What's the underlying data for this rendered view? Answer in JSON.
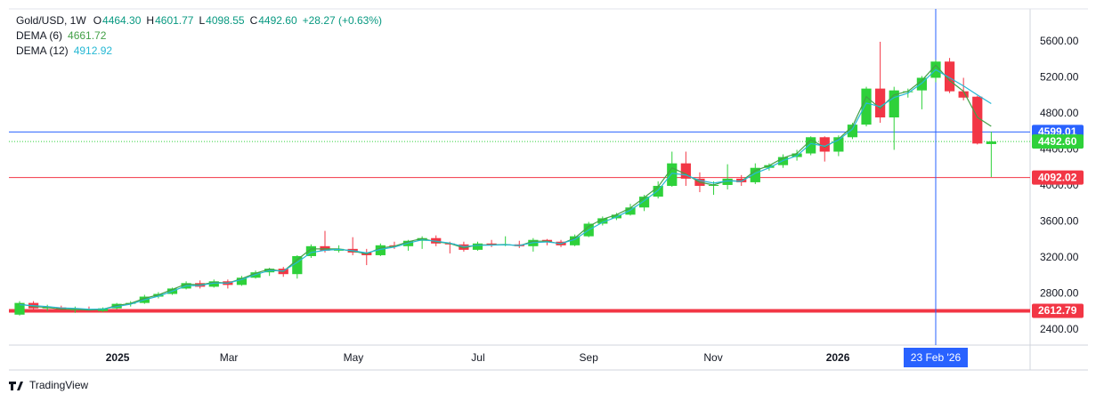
{
  "chart_data": {
    "type": "candlestick",
    "legend": {
      "symbol": "Gold/USD, 1W",
      "ohlc": [
        {
          "label": "O",
          "value": "4464.30"
        },
        {
          "label": "H",
          "value": "4601.77"
        },
        {
          "label": "L",
          "value": "4098.55"
        },
        {
          "label": "C",
          "value": "4492.60"
        }
      ],
      "change": "+28.27 (+0.63%)"
    },
    "categories": [
      null,
      null,
      null,
      null,
      null,
      null,
      null,
      null,
      null,
      null,
      null,
      null,
      null,
      null,
      null,
      null,
      null,
      null,
      null,
      null,
      null,
      null,
      null,
      null,
      null,
      null,
      null,
      null,
      null,
      null,
      null,
      null,
      null,
      null,
      null,
      null,
      null,
      null,
      null,
      null,
      null,
      null,
      null,
      null,
      null,
      null,
      null,
      null,
      null,
      null,
      null,
      null,
      null,
      null,
      null,
      null,
      null,
      null,
      null,
      null,
      null,
      null,
      null,
      null,
      null,
      null,
      null,
      null,
      null,
      null,
      null
    ],
    "open": [
      2570,
      2700,
      2640,
      2650,
      2620,
      2630,
      2610,
      2640,
      2690,
      2700,
      2770,
      2800,
      2860,
      2920,
      2880,
      2940,
      2900,
      2980,
      3040,
      3080,
      3020,
      3220,
      3330,
      3280,
      3300,
      3260,
      3230,
      3340,
      3330,
      3390,
      3420,
      3360,
      3350,
      3290,
      3360,
      3340,
      3350,
      3330,
      3400,
      3380,
      3340,
      3440,
      3580,
      3640,
      3680,
      3760,
      3880,
      4000,
      4250,
      4080,
      4000,
      4010,
      4080,
      4040,
      4200,
      4230,
      4320,
      4360,
      4540,
      4380,
      4540,
      4680,
      5080,
      4760,
      5040,
      5060,
      5200,
      5380,
      5050,
      4990,
      4464.3
    ],
    "high": [
      2720,
      2720,
      2680,
      2670,
      2660,
      2660,
      2650,
      2700,
      2720,
      2790,
      2820,
      2870,
      2940,
      2950,
      2960,
      2960,
      3000,
      3060,
      3090,
      3100,
      3230,
      3350,
      3500,
      3340,
      3430,
      3300,
      3360,
      3380,
      3400,
      3440,
      3450,
      3380,
      3380,
      3380,
      3400,
      3440,
      3390,
      3420,
      3410,
      3400,
      3460,
      3600,
      3660,
      3700,
      3800,
      3900,
      4050,
      4380,
      4380,
      4150,
      4050,
      4240,
      4120,
      4250,
      4250,
      4350,
      4400,
      4550,
      4550,
      4560,
      4700,
      5100,
      5600,
      5100,
      5080,
      5220,
      5400,
      5420,
      5200,
      5000,
      4601.77
    ],
    "low": [
      2560,
      2630,
      2610,
      2600,
      2590,
      2600,
      2600,
      2630,
      2660,
      2690,
      2750,
      2790,
      2850,
      2860,
      2870,
      2860,
      2890,
      2970,
      3000,
      2990,
      2970,
      3200,
      3260,
      3260,
      3230,
      3120,
      3220,
      3300,
      3280,
      3300,
      3330,
      3250,
      3270,
      3280,
      3320,
      3330,
      3310,
      3270,
      3340,
      3320,
      3330,
      3430,
      3560,
      3620,
      3670,
      3720,
      3860,
      3990,
      4000,
      3930,
      3900,
      3960,
      4000,
      4020,
      4170,
      4200,
      4280,
      4340,
      4270,
      4330,
      4520,
      4660,
      4700,
      4400,
      4980,
      4850,
      5150,
      5030,
      4950,
      4460,
      4098.55
    ],
    "close": [
      2700,
      2640,
      2650,
      2620,
      2630,
      2610,
      2640,
      2690,
      2700,
      2770,
      2800,
      2860,
      2920,
      2880,
      2940,
      2900,
      2980,
      3040,
      3080,
      3020,
      3220,
      3330,
      3280,
      3300,
      3260,
      3230,
      3340,
      3330,
      3390,
      3420,
      3360,
      3350,
      3290,
      3360,
      3340,
      3350,
      3330,
      3400,
      3380,
      3340,
      3440,
      3580,
      3640,
      3680,
      3760,
      3880,
      4000,
      4250,
      4080,
      4000,
      4010,
      4080,
      4040,
      4200,
      4230,
      4320,
      4360,
      4540,
      4380,
      4540,
      4680,
      5080,
      4760,
      5060,
      5050,
      5200,
      5380,
      5050,
      4980,
      4470,
      4492.6
    ],
    "up_color": "#2ed13a",
    "down_color": "#f23645",
    "series": [
      {
        "name": "DEMA (6)",
        "color": "#43a047",
        "values": [
          2690,
          2660,
          2650,
          2630,
          2630,
          2620,
          2630,
          2670,
          2695,
          2750,
          2790,
          2850,
          2910,
          2900,
          2930,
          2920,
          2970,
          3030,
          3075,
          3050,
          3180,
          3300,
          3300,
          3300,
          3275,
          3245,
          3310,
          3330,
          3380,
          3415,
          3380,
          3360,
          3310,
          3345,
          3345,
          3350,
          3335,
          3385,
          3385,
          3355,
          3420,
          3550,
          3630,
          3680,
          3755,
          3870,
          3990,
          4200,
          4130,
          4040,
          4010,
          4060,
          4050,
          4170,
          4225,
          4310,
          4360,
          4510,
          4430,
          4520,
          4660,
          4990,
          4860,
          5010,
          5050,
          5170,
          5340,
          5170,
          5050,
          4760,
          4661.72
        ]
      },
      {
        "name": "DEMA (12)",
        "color": "#26b8d4",
        "values": [
          2680,
          2670,
          2660,
          2645,
          2640,
          2630,
          2632,
          2660,
          2685,
          2735,
          2775,
          2830,
          2890,
          2895,
          2920,
          2920,
          2960,
          3015,
          3060,
          3055,
          3150,
          3260,
          3285,
          3295,
          3280,
          3255,
          3295,
          3320,
          3365,
          3400,
          3385,
          3365,
          3325,
          3340,
          3342,
          3347,
          3338,
          3370,
          3378,
          3360,
          3405,
          3510,
          3595,
          3655,
          3730,
          3835,
          3950,
          4140,
          4120,
          4060,
          4030,
          4055,
          4050,
          4140,
          4200,
          4280,
          4335,
          4470,
          4440,
          4510,
          4630,
          4920,
          4880,
          4980,
          5030,
          5140,
          5290,
          5200,
          5110,
          5010,
          4912.92
        ]
      }
    ],
    "levels": [
      {
        "value": 4599.01,
        "color": "#2962ff",
        "style": "solid"
      },
      {
        "value": 4492.6,
        "label": "4492.60",
        "color": "#2ed13a",
        "style": "dotted"
      },
      {
        "value": 4092.02,
        "color": "#f23645",
        "style": "solid"
      },
      {
        "value": 2612.79,
        "color": "#f23645",
        "style": "thick"
      }
    ],
    "crosshair": {
      "x": 66,
      "label": "23 Feb '26",
      "color": "#2962ff"
    },
    "xlim": [
      -0.77,
      72.8
    ],
    "xticks": [
      {
        "value": 7.06,
        "label": "2025"
      },
      {
        "value": 15.08,
        "label": "Mar"
      },
      {
        "value": 24.05,
        "label": "May"
      },
      {
        "value": 33.03,
        "label": "Jul"
      },
      {
        "value": 41.0,
        "label": "Sep"
      },
      {
        "value": 49.97,
        "label": "Nov"
      },
      {
        "value": 58.95,
        "label": "2026"
      }
    ],
    "ylim": [
      2232,
      5965
    ],
    "yticks": [
      {
        "value": 2400,
        "label": "2400.00"
      },
      {
        "value": 2800,
        "label": "2800.00"
      },
      {
        "value": 3200,
        "label": "3200.00"
      },
      {
        "value": 3600,
        "label": "3600.00"
      },
      {
        "value": 4000,
        "label": "4000.00"
      },
      {
        "value": 4400,
        "label": "4400.00"
      },
      {
        "value": 4800,
        "label": "4800.00"
      },
      {
        "value": 5200,
        "label": "5200.00"
      },
      {
        "value": 5600,
        "label": "5600.00"
      }
    ],
    "grid": false,
    "brand": "TradingView"
  }
}
